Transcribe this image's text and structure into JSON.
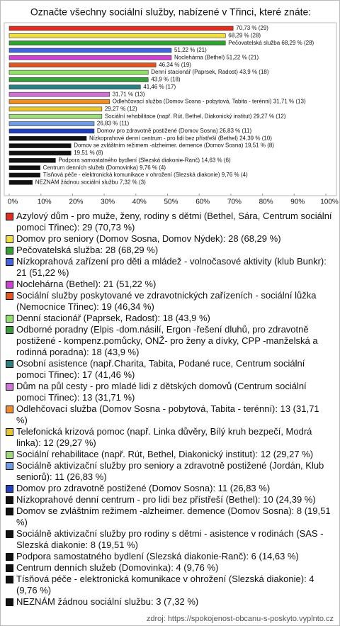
{
  "chart_data": {
    "type": "hbar",
    "title": "Označte všechny sociální služby, nabízené v Třinci, které znáte:",
    "categories": [
      "Azylový dům - pro muže, ženy, rodiny s dětmi (Bethel, Sára, Centrum sociální pomoci Třinec): 29 (70,73 %)",
      "Domov pro seniory (Domov Sosna, Domov Nýdek): 28 (68,29 %)",
      "Pečovatelská služba: 28 (68,29 %)",
      "Nízkoprahová zařízení pro děti a mládež - volnočasové aktivity (klub Bunkr): 21 (51,22 %)",
      "Noclehárna (Bethel): 21 (51,22 %)",
      "Sociální služby poskytované ve zdravotnických zařízeních - sociální lůžka (Nemocnice Třinec): 19 (46,34 %)",
      "Denní stacionář (Paprsek, Radost): 18 (43,9 %)",
      "Odborné poradny (Elpis -dom.násilí, Ergon -řešení dluhů, pro zdravotně postižené - kompenz.pomůcky, ONŽ- pro ženy a dívky, CPP -manželská a rodinná poradna): 18 (43,9 %)",
      "Osobní asistence (např.Charita, Tabita, Podané ruce, Centrum sociální pomoci Třinec): 17 (41,46 %)",
      "Dům na půl cesty - pro mladé lidi z dětských domovů (Centrum sociální pomoci Třinec): 13 (31,71 %)",
      "Odlehčovací služba (Domov Sosna - pobytová, Tabita - terénní): 13 (31,71 %)",
      "Telefonická krizová pomoc (např. Linka důvěry, Bílý kruh bezpečí, Modrá linka): 12 (29,27 %)",
      "Sociální rehabilitace (např. Rút, Bethel, Diakonický institut): 12 (29,27 %)",
      "Sociálně aktivizační služby pro seniory a zdravotně postižené (Jordán, Klub seniorů): 11 (26,83 %)",
      "Domov pro zdravotně postižené (Domov Sosna): 11 (26,83 %)",
      "Nízkoprahové denní centrum - pro lidi bez přístřeší (Bethel): 10 (24,39 %)",
      "Domov se zvláštním režimem -alzheimer. demence (Domov Sosna): 8 (19,51 %)",
      "Sociálně aktivizační služby pro rodiny s dětmi - asistence v rodinách (SAS - Slezská diakonie: 8 (19,51 %)",
      "Podpora samostatného bydlení (Slezská diakonie-Ranč): 6 (14,63 %)",
      "Centrum denních služeb (Domovinka): 4 (9,76 %)",
      "Tísňová péče - elektronická komunikace v ohrožení (Slezská diakonie): 4 (9,76 %)",
      "NEZNÁM žádnou sociální službu: 3 (7,32 %)"
    ],
    "values": [
      70.73,
      68.29,
      68.29,
      51.22,
      51.22,
      46.34,
      43.9,
      43.9,
      41.46,
      31.71,
      31.71,
      29.27,
      29.27,
      26.83,
      26.83,
      24.39,
      19.51,
      19.51,
      14.63,
      9.76,
      9.76,
      7.32
    ],
    "value_labels": [
      "70,73 % (29)",
      "68,29 % (28)",
      "Pečovatelská služba 68,29 % (28)",
      "51,22 % (21)",
      "Noclehárna (Bethel) 51,22 % (21)",
      "46,34 % (19)",
      "Denní stacionář (Paprsek, Radost) 43,9 % (18)",
      "43,9 % (18)",
      "41,46 % (17)",
      "31,71 % (13)",
      "Odlehčovací služba (Domov Sosna - pobytová, Tabita - terénní) 31,71 % (13)",
      "29,27 % (12)",
      "Sociální rehabilitace (např. Rút, Bethel, Diakonický institut) 29,27 % (12)",
      "26,83 % (11)",
      "Domov pro zdravotně postižené (Domov Sosna) 26,83 % (11)",
      "Nízkoprahové denní centrum - pro lidi bez přístřeší (Bethel) 24,39 % (10)",
      "Domov se zvláštním režimem -alzheimer. demence (Domov Sosna) 19,51 % (8)",
      "19,51 % (8)",
      "Podpora samostatného bydlení (Slezská diakonie-Ranč) 14,63 % (6)",
      "Centrum denních služeb (Domovinka) 9,76 % (4)",
      "Tísňová péče - elektronická komunikace v ohrožení (Slezská diakonie) 9,76 % (4)",
      "NEZNÁM žádnou sociální službu 7,32 % (3)"
    ],
    "colors": [
      "#e52a1e",
      "#f2e03a",
      "#2ea332",
      "#4363e0",
      "#d13ed4",
      "#e4561d",
      "#8fe266",
      "#36a03a",
      "#2a8080",
      "#d072d6",
      "#f08d22",
      "#e8c72a",
      "#9fdc7a",
      "#6e9de6",
      "#2040c0",
      "#111111",
      "#111111",
      "#111111",
      "#111111",
      "#111111",
      "#111111",
      "#111111"
    ],
    "xlim": [
      0,
      100
    ],
    "xticks": [
      {
        "value": 0,
        "label": "0%"
      },
      {
        "value": 10,
        "label": "10%"
      },
      {
        "value": 20,
        "label": "20%"
      },
      {
        "value": 30,
        "label": "30%"
      },
      {
        "value": 40,
        "label": "40%"
      },
      {
        "value": 50,
        "label": "50%"
      },
      {
        "value": 60,
        "label": "60%"
      },
      {
        "value": 70,
        "label": "70%"
      },
      {
        "value": 80,
        "label": "80%"
      },
      {
        "value": 90,
        "label": "90%"
      },
      {
        "value": 100,
        "label": "100%"
      }
    ],
    "source": "zdroj: https://spokojenost-obcanu-s-poskyto.vyplnto.cz"
  }
}
